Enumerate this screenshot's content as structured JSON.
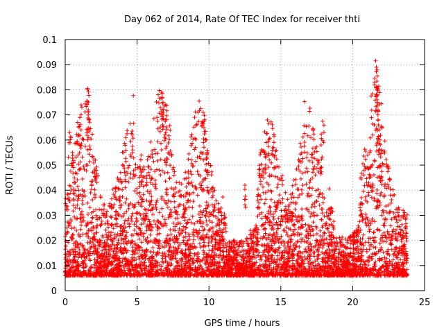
{
  "chart_data": {
    "type": "scatter",
    "title": "Day 062 of 2014, Rate Of TEC Index for receiver thti",
    "xlabel": "GPS time / hours",
    "ylabel": "ROTI / TECUs",
    "xlim": [
      0,
      25
    ],
    "ylim": [
      0,
      0.1
    ],
    "xticks": [
      0,
      5,
      10,
      15,
      20,
      25
    ],
    "yticks": [
      0,
      0.01,
      0.02,
      0.03,
      0.04,
      0.05,
      0.06,
      0.07,
      0.08,
      0.09,
      0.1
    ],
    "xtick_labels": [
      "0",
      "5",
      "10",
      "15",
      "20",
      "25"
    ],
    "ytick_labels": [
      "0",
      "0.01",
      "0.02",
      "0.03",
      "0.04",
      "0.05",
      "0.06",
      "0.07",
      "0.08",
      "0.09",
      "0.1"
    ],
    "grid": true,
    "marker": "+",
    "color": "#ff0000",
    "series": [
      {
        "name": "ROTI",
        "x_range": [
          0,
          23.8
        ],
        "typical_range": [
          0.008,
          0.03
        ],
        "spikes": [
          {
            "x": 0.3,
            "y": 0.063
          },
          {
            "x": 0.5,
            "y": 0.055
          },
          {
            "x": 1.1,
            "y": 0.064
          },
          {
            "x": 1.55,
            "y": 0.0805
          },
          {
            "x": 1.6,
            "y": 0.072
          },
          {
            "x": 1.65,
            "y": 0.068
          },
          {
            "x": 2.1,
            "y": 0.052
          },
          {
            "x": 5.3,
            "y": 0.054
          },
          {
            "x": 6.7,
            "y": 0.079
          },
          {
            "x": 6.75,
            "y": 0.077
          },
          {
            "x": 6.8,
            "y": 0.075
          },
          {
            "x": 7.0,
            "y": 0.063
          },
          {
            "x": 9.6,
            "y": 0.071
          },
          {
            "x": 9.7,
            "y": 0.068
          },
          {
            "x": 9.8,
            "y": 0.06
          },
          {
            "x": 12.5,
            "y": 0.042
          },
          {
            "x": 13.6,
            "y": 0.055
          },
          {
            "x": 14.5,
            "y": 0.057
          },
          {
            "x": 17.9,
            "y": 0.0675
          },
          {
            "x": 17.8,
            "y": 0.058
          },
          {
            "x": 21.6,
            "y": 0.0915
          },
          {
            "x": 21.65,
            "y": 0.089
          },
          {
            "x": 21.7,
            "y": 0.081
          },
          {
            "x": 21.7,
            "y": 0.076
          },
          {
            "x": 21.75,
            "y": 0.07
          },
          {
            "x": 21.8,
            "y": 0.066
          },
          {
            "x": 21.9,
            "y": 0.06
          }
        ]
      }
    ]
  }
}
